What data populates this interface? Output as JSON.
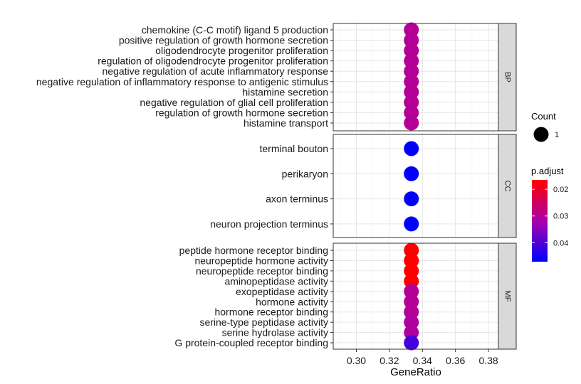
{
  "chart_data": {
    "type": "scatter",
    "xlabel": "GeneRatio",
    "xlim": [
      0.286,
      0.386
    ],
    "x_ticks": [
      "0.30",
      "0.32",
      "0.34",
      "0.36",
      "0.38"
    ],
    "x_tick_values": [
      0.3,
      0.32,
      0.34,
      0.36,
      0.38
    ],
    "grid": true,
    "color_range": [
      0.0165,
      0.0471
    ],
    "colors": {
      "low": "#ff0000",
      "high": "#0000ff",
      "mid": "#aa00aa"
    },
    "panels": [
      {
        "strip": "BP",
        "terms": [
          {
            "label": "chemokine (C-C motif) ligand 5 production",
            "x": 0.3333,
            "p_adjust": 0.03
          },
          {
            "label": "positive regulation of growth hormone secretion",
            "x": 0.3333,
            "p_adjust": 0.03
          },
          {
            "label": "oligodendrocyte progenitor proliferation",
            "x": 0.3333,
            "p_adjust": 0.03
          },
          {
            "label": "regulation of oligodendrocyte progenitor proliferation",
            "x": 0.3333,
            "p_adjust": 0.03
          },
          {
            "label": "negative regulation of acute inflammatory response",
            "x": 0.3333,
            "p_adjust": 0.03
          },
          {
            "label": "negative regulation of inflammatory response to antigenic stimulus",
            "x": 0.3333,
            "p_adjust": 0.03
          },
          {
            "label": "histamine secretion",
            "x": 0.3333,
            "p_adjust": 0.03
          },
          {
            "label": "negative regulation of glial cell proliferation",
            "x": 0.3333,
            "p_adjust": 0.03
          },
          {
            "label": "regulation of growth hormone secretion",
            "x": 0.3333,
            "p_adjust": 0.03
          },
          {
            "label": "histamine transport",
            "x": 0.3333,
            "p_adjust": 0.03
          }
        ]
      },
      {
        "strip": "CC",
        "terms": [
          {
            "label": "terminal bouton",
            "x": 0.3333,
            "p_adjust": 0.047
          },
          {
            "label": "perikaryon",
            "x": 0.3333,
            "p_adjust": 0.047
          },
          {
            "label": "axon terminus",
            "x": 0.3333,
            "p_adjust": 0.047
          },
          {
            "label": "neuron projection terminus",
            "x": 0.3333,
            "p_adjust": 0.047
          }
        ]
      },
      {
        "strip": "MF",
        "terms": [
          {
            "label": "peptide hormone receptor binding",
            "x": 0.3333,
            "p_adjust": 0.0165
          },
          {
            "label": "neuropeptide hormone activity",
            "x": 0.3333,
            "p_adjust": 0.0165
          },
          {
            "label": "neuropeptide receptor binding",
            "x": 0.3333,
            "p_adjust": 0.0165
          },
          {
            "label": "aminopeptidase activity",
            "x": 0.3333,
            "p_adjust": 0.0165
          },
          {
            "label": "exopeptidase activity",
            "x": 0.3333,
            "p_adjust": 0.03
          },
          {
            "label": "hormone activity",
            "x": 0.3333,
            "p_adjust": 0.03
          },
          {
            "label": "hormone receptor binding",
            "x": 0.3333,
            "p_adjust": 0.03
          },
          {
            "label": "serine-type peptidase activity",
            "x": 0.3333,
            "p_adjust": 0.031
          },
          {
            "label": "serine hydrolase activity",
            "x": 0.3333,
            "p_adjust": 0.031
          },
          {
            "label": "G protein-coupled receptor binding",
            "x": 0.3333,
            "p_adjust": 0.041
          }
        ]
      }
    ],
    "legend": {
      "count": {
        "title": "Count",
        "entries": [
          "1"
        ]
      },
      "p_adjust": {
        "title": "p.adjust",
        "breaks": [
          "0.02",
          "0.03",
          "0.04"
        ],
        "break_values": [
          0.02,
          0.03,
          0.04
        ]
      }
    }
  }
}
